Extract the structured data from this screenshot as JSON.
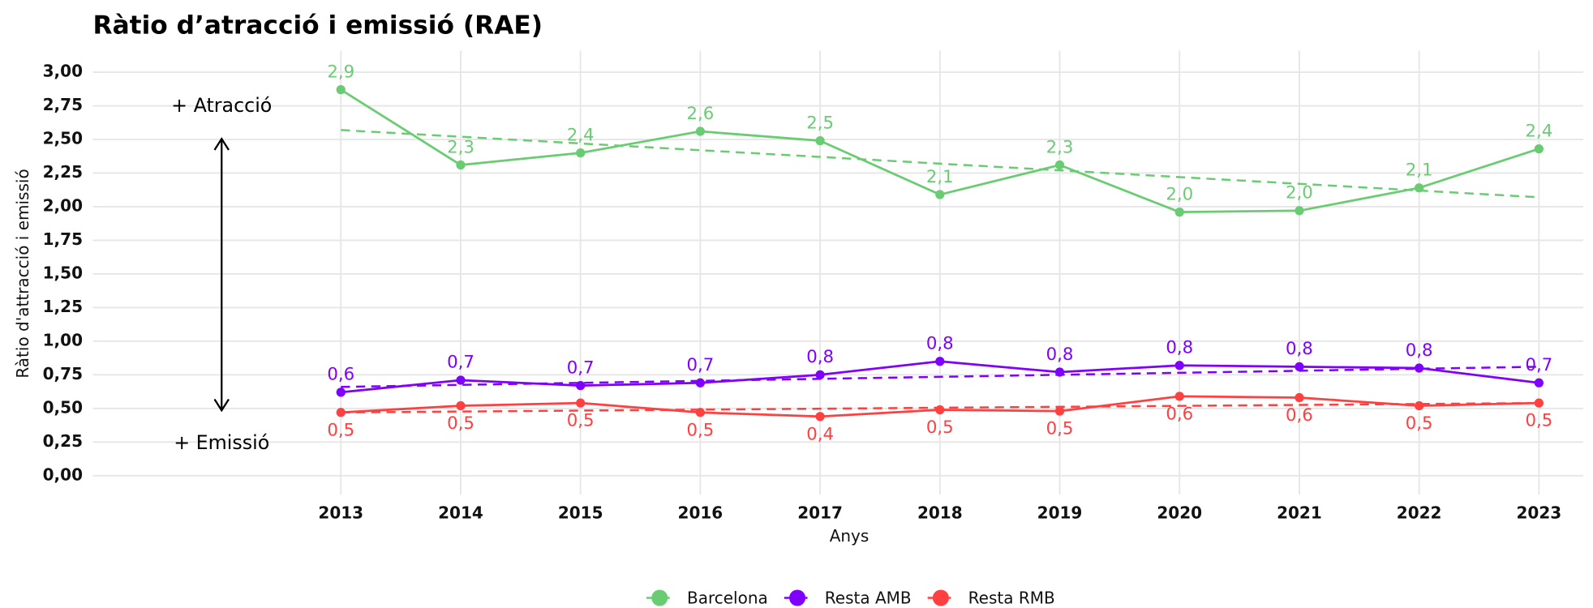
{
  "chart_data": {
    "type": "line",
    "title": "Ràtio d’atracció i emissió (RAE)",
    "x_label": "Anys",
    "y_label": "Ràtio d'attracció i emissió",
    "annotations": [
      "+ Atracció",
      "+ Emissió"
    ],
    "x": [
      2013,
      2014,
      2015,
      2016,
      2017,
      2018,
      2019,
      2020,
      2021,
      2022,
      2023
    ],
    "xlim": [
      2010.93,
      2023.37
    ],
    "xticks": [
      2013,
      2014,
      2015,
      2016,
      2017,
      2018,
      2019,
      2020,
      2021,
      2022,
      2023
    ],
    "ylim": [
      -0.14,
      3.16
    ],
    "yticks": [
      {
        "value": 0,
        "label": "0,00"
      },
      {
        "value": 0.25,
        "label": "0,25"
      },
      {
        "value": 0.5,
        "label": "0,50"
      },
      {
        "value": 0.75,
        "label": "0,75"
      },
      {
        "value": 1,
        "label": "1,00"
      },
      {
        "value": 1.25,
        "label": "1,25"
      },
      {
        "value": 1.5,
        "label": "1,50"
      },
      {
        "value": 1.75,
        "label": "1,75"
      },
      {
        "value": 2,
        "label": "2,00"
      },
      {
        "value": 2.25,
        "label": "2,25"
      },
      {
        "value": 2.5,
        "label": "2,50"
      },
      {
        "value": 2.75,
        "label": "2,75"
      },
      {
        "value": 3,
        "label": "3,00"
      }
    ],
    "grid": true,
    "legend": "bottom",
    "series": [
      {
        "name": "Barcelona",
        "color": "#6acc72",
        "values": [
          2.87,
          2.31,
          2.4,
          2.56,
          2.49,
          2.09,
          2.31,
          1.96,
          1.97,
          2.14,
          2.43
        ],
        "value_labels": [
          "2,9",
          "2,3",
          "2,4",
          "2,6",
          "2,5",
          "2,1",
          "2,3",
          "2,0",
          "2,0",
          "2,1",
          "2,4"
        ],
        "trend": [
          2.57,
          2.07
        ]
      },
      {
        "name": "Resta AMB",
        "color": "#7f00ff",
        "values": [
          0.62,
          0.71,
          0.67,
          0.69,
          0.75,
          0.85,
          0.77,
          0.82,
          0.81,
          0.8,
          0.69
        ],
        "value_labels": [
          "0,6",
          "0,7",
          "0,7",
          "0,7",
          "0,8",
          "0,8",
          "0,8",
          "0,8",
          "0,8",
          "0,8",
          "0,7"
        ],
        "trend": [
          0.66,
          0.81
        ]
      },
      {
        "name": "Resta RMB",
        "color": "#ff4040",
        "values": [
          0.47,
          0.52,
          0.54,
          0.47,
          0.44,
          0.49,
          0.48,
          0.59,
          0.58,
          0.52,
          0.54
        ],
        "value_labels": [
          "0,5",
          "0,5",
          "0,5",
          "0,5",
          "0,4",
          "0,5",
          "0,5",
          "0,6",
          "0,6",
          "0,5",
          "0,5"
        ],
        "trend": [
          0.47,
          0.54
        ]
      }
    ]
  }
}
